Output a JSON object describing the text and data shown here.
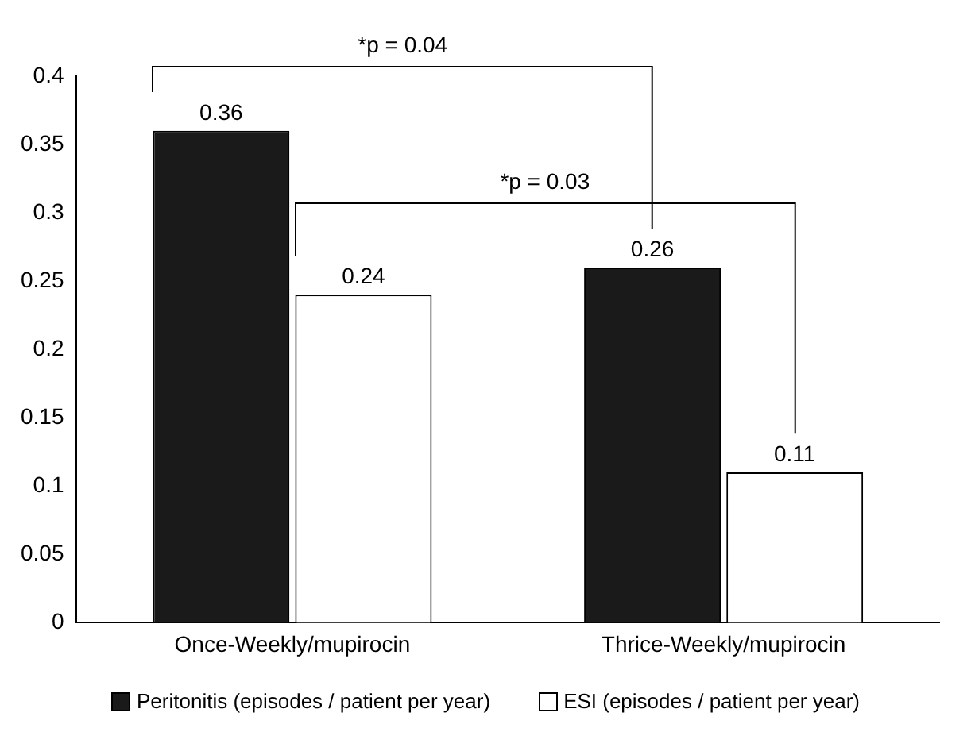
{
  "chart_data": {
    "type": "bar",
    "categories": [
      "Once-Weekly/mupirocin",
      "Thrice-Weekly/mupirocin"
    ],
    "series": [
      {
        "name": "Peritonitis (episodes / patient per year)",
        "color": "#1a1a1a",
        "values": [
          0.36,
          0.26
        ]
      },
      {
        "name": "ESI (episodes / patient per year)",
        "color": "#ffffff",
        "values": [
          0.24,
          0.11
        ]
      }
    ],
    "ylim": [
      0,
      0.4
    ],
    "yticks": [
      0,
      0.05,
      0.1,
      0.15,
      0.2,
      0.25,
      0.3,
      0.35,
      0.4
    ],
    "grid": false,
    "legend": "bottom",
    "data_labels": true,
    "annotations": [
      "*p = 0.04",
      "*p = 0.03"
    ]
  }
}
